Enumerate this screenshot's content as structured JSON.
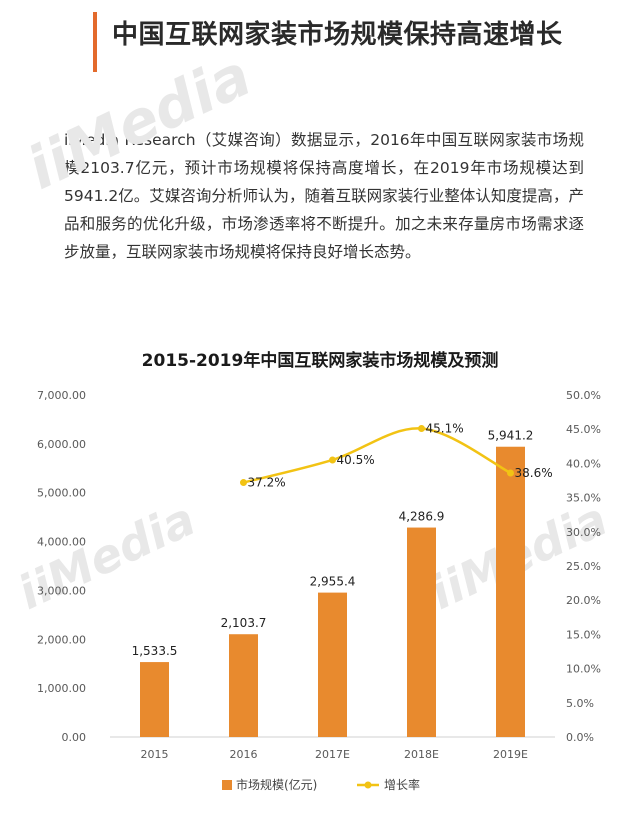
{
  "header": {
    "title": "中国互联网家装市场规模保持高速增长",
    "accent_color": "#e36a2c"
  },
  "body_text": "iiMedia Research（艾媒咨询）数据显示，2016年中国互联网家装市场规模2103.7亿元，预计市场规模将保持高度增长，在2019年市场规模达到5941.2亿。艾媒咨询分析师认为，随着互联网家装行业整体认知度提高，产品和服务的优化升级，市场渗透率将不断提升。加之未来存量房市场需求逐步放量，互联网家装市场规模将保持良好增长态势。",
  "watermark": "iiMedia",
  "chart_data": {
    "type": "bar",
    "title": "2015-2019年中国互联网家装市场规模及预测",
    "categories": [
      "2015",
      "2016",
      "2017E",
      "2018E",
      "2019E"
    ],
    "series": [
      {
        "name": "市场规模(亿元)",
        "type": "bar",
        "axis": "left",
        "values": [
          1533.5,
          2103.7,
          2955.4,
          4286.9,
          5941.2
        ],
        "labels": [
          "1,533.5",
          "2,103.7",
          "2,955.4",
          "4,286.9",
          "5,941.2"
        ],
        "color": "#e88a2e"
      },
      {
        "name": "增长率",
        "type": "line",
        "axis": "right",
        "values": [
          null,
          37.2,
          40.5,
          45.1,
          38.6
        ],
        "labels": [
          "",
          "37.2%",
          "40.5%",
          "45.1%",
          "38.6%"
        ],
        "color": "#f2c314"
      }
    ],
    "ylim_left": [
      0,
      7000
    ],
    "ylim_right": [
      0,
      50
    ],
    "left_ticks": [
      "0.00",
      "1,000.00",
      "2,000.00",
      "3,000.00",
      "4,000.00",
      "5,000.00",
      "6,000.00",
      "7,000.00"
    ],
    "right_ticks": [
      "0.0%",
      "5.0%",
      "10.0%",
      "15.0%",
      "20.0%",
      "25.0%",
      "30.0%",
      "35.0%",
      "40.0%",
      "45.0%",
      "50.0%"
    ],
    "grid": false,
    "legend_position": "bottom"
  }
}
